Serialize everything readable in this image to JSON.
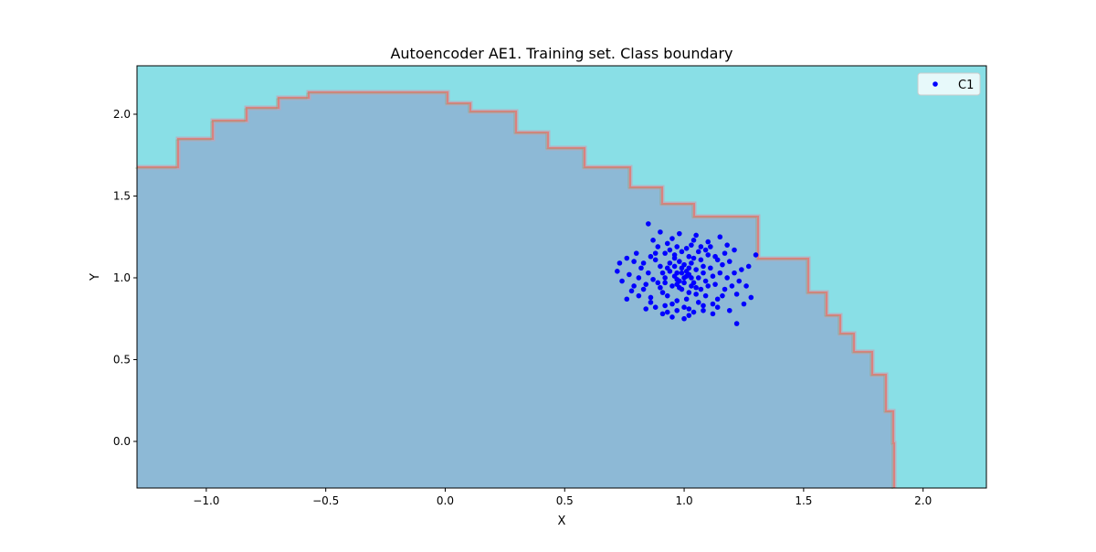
{
  "chart_data": {
    "type": "scatter",
    "title": "Autoencoder AE1. Training set. Class boundary",
    "xlabel": "X",
    "ylabel": "Y",
    "xlim": [
      -1.29,
      2.265
    ],
    "ylim": [
      -0.285,
      2.296
    ],
    "xticks": [
      -1.0,
      -0.5,
      0.0,
      0.5,
      1.0,
      1.5,
      2.0
    ],
    "xtick_labels": [
      "−1.0",
      "−0.5",
      "0.0",
      "0.5",
      "1.0",
      "1.5",
      "2.0"
    ],
    "yticks": [
      0.0,
      0.5,
      1.0,
      1.5,
      2.0
    ],
    "ytick_labels": [
      "0.0",
      "0.5",
      "1.0",
      "1.5",
      "2.0"
    ],
    "grid": false,
    "legend": {
      "placement": "top-right",
      "entries": [
        "C1"
      ]
    },
    "colors": {
      "inside_region": "#8db9d6",
      "outside_region": "#89dfe6",
      "boundary": "#d9827f",
      "points": "#0000ff"
    },
    "boundary": [
      [
        -1.29,
        1.676
      ],
      [
        -1.118,
        1.85
      ],
      [
        -0.973,
        1.96
      ],
      [
        -0.832,
        2.04
      ],
      [
        -0.698,
        2.1
      ],
      [
        -0.572,
        2.134
      ],
      [
        -0.106,
        2.134
      ],
      [
        0.009,
        2.067
      ],
      [
        0.105,
        2.017
      ],
      [
        0.296,
        1.888
      ],
      [
        0.43,
        1.793
      ],
      [
        0.583,
        1.676
      ],
      [
        0.774,
        1.553
      ],
      [
        0.908,
        1.453
      ],
      [
        1.042,
        1.374
      ],
      [
        1.309,
        1.117
      ],
      [
        1.519,
        0.911
      ],
      [
        1.596,
        0.771
      ],
      [
        1.653,
        0.659
      ],
      [
        1.71,
        0.547
      ],
      [
        1.787,
        0.408
      ],
      [
        1.844,
        0.184
      ],
      [
        1.875,
        -0.011
      ],
      [
        1.88,
        -0.285
      ]
    ],
    "series": [
      {
        "name": "C1",
        "points": [
          [
            0.85,
            1.33
          ],
          [
            1.22,
            0.72
          ],
          [
            1.3,
            1.14
          ],
          [
            0.72,
            1.04
          ],
          [
            1.15,
            1.25
          ],
          [
            0.73,
            1.09
          ],
          [
            0.74,
            0.98
          ],
          [
            0.76,
            0.87
          ],
          [
            0.78,
            0.92
          ],
          [
            1.28,
            0.88
          ],
          [
            1.27,
            1.07
          ],
          [
            1.25,
            0.84
          ],
          [
            1.19,
            0.8
          ],
          [
            1.21,
            1.17
          ],
          [
            1.12,
            0.78
          ],
          [
            0.9,
            1.28
          ],
          [
            0.93,
            1.21
          ],
          [
            0.98,
            1.27
          ],
          [
            1.05,
            1.26
          ],
          [
            1.1,
            1.22
          ],
          [
            0.8,
            1.15
          ],
          [
            0.82,
            1.06
          ],
          [
            0.84,
            0.96
          ],
          [
            0.86,
            0.88
          ],
          [
            0.88,
            0.82
          ],
          [
            0.91,
            0.78
          ],
          [
            0.95,
            0.76
          ],
          [
            1.0,
            0.75
          ],
          [
            1.04,
            0.79
          ],
          [
            1.08,
            0.83
          ],
          [
            1.14,
            0.87
          ],
          [
            1.17,
            0.93
          ],
          [
            1.18,
            1.0
          ],
          [
            1.16,
            1.08
          ],
          [
            1.13,
            1.13
          ],
          [
            1.09,
            1.17
          ],
          [
            1.03,
            1.2
          ],
          [
            0.97,
            1.19
          ],
          [
            0.92,
            1.15
          ],
          [
            0.88,
            1.11
          ],
          [
            0.85,
            1.03
          ],
          [
            0.87,
            0.99
          ],
          [
            0.9,
            0.94
          ],
          [
            0.93,
            0.89
          ],
          [
            0.97,
            0.86
          ],
          [
            1.01,
            0.87
          ],
          [
            1.05,
            0.9
          ],
          [
            1.1,
            0.95
          ],
          [
            1.12,
            1.01
          ],
          [
            1.11,
            1.06
          ],
          [
            1.07,
            1.11
          ],
          [
            1.02,
            1.13
          ],
          [
            0.96,
            1.12
          ],
          [
            0.93,
            1.06
          ],
          [
            0.92,
            1.0
          ],
          [
            0.95,
            0.95
          ],
          [
            0.99,
            0.93
          ],
          [
            1.03,
            0.95
          ],
          [
            1.06,
            1.0
          ],
          [
            1.05,
            1.05
          ],
          [
            1.0,
            1.08
          ],
          [
            0.97,
            1.03
          ],
          [
            1.0,
            1.0
          ],
          [
            1.02,
            1.02
          ],
          [
            0.98,
            0.98
          ],
          [
            1.04,
            0.97
          ],
          [
            0.96,
            1.01
          ],
          [
            1.01,
            1.04
          ],
          [
            0.99,
            1.06
          ],
          [
            1.03,
            1.09
          ],
          [
            0.94,
            1.09
          ],
          [
            0.91,
            1.03
          ],
          [
            0.89,
            0.97
          ],
          [
            0.91,
            0.91
          ],
          [
            0.95,
            0.84
          ],
          [
            1.0,
            0.82
          ],
          [
            1.06,
            0.85
          ],
          [
            1.09,
            0.89
          ],
          [
            1.13,
            0.96
          ],
          [
            1.15,
            1.03
          ],
          [
            1.14,
            1.11
          ],
          [
            1.1,
            1.14
          ],
          [
            1.06,
            1.16
          ],
          [
            0.99,
            1.16
          ],
          [
            0.94,
            1.17
          ],
          [
            0.89,
            1.19
          ],
          [
            0.86,
            1.13
          ],
          [
            0.83,
            1.09
          ],
          [
            0.81,
            1.0
          ],
          [
            0.83,
            0.93
          ],
          [
            0.86,
            0.85
          ],
          [
            0.92,
            0.83
          ],
          [
            0.97,
            0.8
          ],
          [
            1.02,
            0.81
          ],
          [
            1.08,
            0.8
          ],
          [
            1.12,
            0.84
          ],
          [
            1.16,
            0.89
          ],
          [
            1.2,
            0.95
          ],
          [
            1.21,
            1.03
          ],
          [
            1.19,
            1.1
          ],
          [
            1.17,
            1.15
          ],
          [
            1.04,
            1.23
          ],
          [
            0.95,
            1.24
          ],
          [
            0.87,
            1.23
          ],
          [
            0.79,
            1.1
          ],
          [
            0.77,
            1.02
          ],
          [
            0.79,
            0.95
          ],
          [
            0.81,
            0.89
          ],
          [
            1.23,
            0.98
          ],
          [
            1.24,
            1.05
          ],
          [
            1.22,
            0.9
          ],
          [
            1.02,
            0.77
          ],
          [
            0.93,
            0.79
          ],
          [
            1.07,
            1.19
          ],
          [
            1.01,
            1.18
          ],
          [
            0.96,
            1.14
          ],
          [
            1.08,
            1.07
          ],
          [
            1.04,
            1.12
          ],
          [
            0.98,
            1.1
          ],
          [
            0.94,
            1.04
          ],
          [
            0.97,
            0.96
          ],
          [
            1.02,
            0.91
          ],
          [
            1.07,
            0.93
          ],
          [
            1.09,
            0.98
          ],
          [
            1.08,
            1.03
          ],
          [
            0.92,
            0.97
          ],
          [
            0.9,
            1.07
          ],
          [
            0.88,
            1.15
          ],
          [
            1.11,
            1.19
          ],
          [
            1.14,
            0.82
          ],
          [
            0.84,
            0.81
          ],
          [
            1.26,
            0.95
          ],
          [
            0.76,
            1.12
          ],
          [
            1.18,
            1.2
          ],
          [
            1.0,
            0.97
          ],
          [
            1.01,
            1.01
          ],
          [
            0.99,
            1.03
          ],
          [
            1.03,
            1.0
          ],
          [
            0.97,
            0.99
          ],
          [
            1.02,
            1.06
          ],
          [
            0.98,
            0.94
          ],
          [
            1.05,
            0.94
          ],
          [
            0.96,
            1.07
          ]
        ]
      }
    ]
  }
}
